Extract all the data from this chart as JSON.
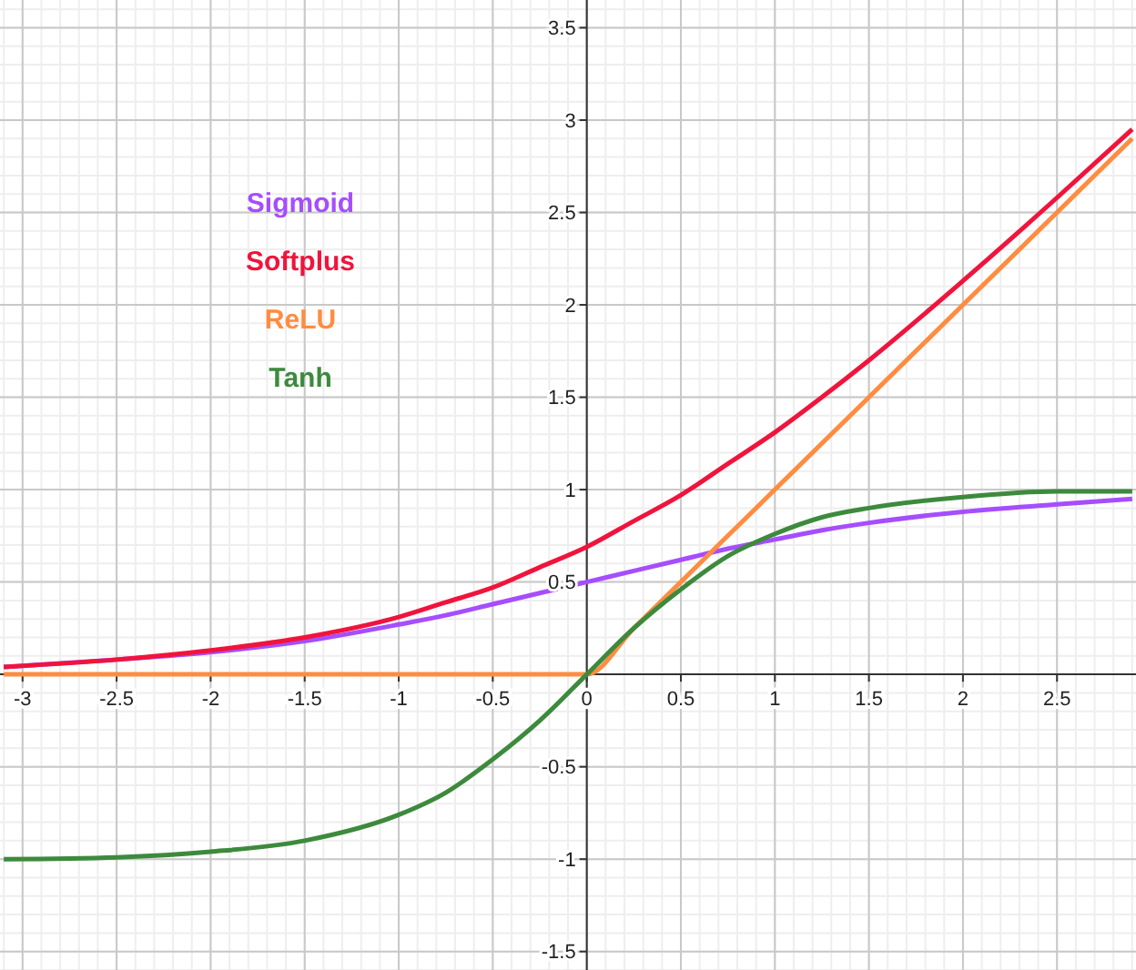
{
  "chart_data": {
    "type": "line",
    "x": [
      -3.1,
      -2.5,
      -2,
      -1.5,
      -1,
      -0.75,
      -0.5,
      -0.25,
      0,
      0.25,
      0.5,
      0.75,
      1,
      1.25,
      1.5,
      2,
      2.5,
      2.9
    ],
    "series": [
      {
        "name": "Sigmoid",
        "color": "#a64dff",
        "values": [
          0.04,
          0.08,
          0.12,
          0.18,
          0.27,
          0.32,
          0.38,
          0.44,
          0.5,
          0.56,
          0.62,
          0.68,
          0.73,
          0.78,
          0.82,
          0.88,
          0.92,
          0.95
        ]
      },
      {
        "name": "Softplus",
        "color": "#f0143c",
        "values": [
          0.04,
          0.08,
          0.13,
          0.2,
          0.31,
          0.39,
          0.47,
          0.58,
          0.69,
          0.83,
          0.97,
          1.14,
          1.31,
          1.5,
          1.7,
          2.13,
          2.58,
          2.95
        ]
      },
      {
        "name": "ReLU",
        "color": "#ff8c40",
        "values": [
          0,
          0,
          0,
          0,
          0,
          0,
          0,
          0,
          0,
          0.25,
          0.5,
          0.75,
          1,
          1.25,
          1.5,
          2,
          2.5,
          2.9
        ]
      },
      {
        "name": "Tanh",
        "color": "#3d8a3d",
        "values": [
          -1,
          -0.99,
          -0.96,
          -0.9,
          -0.76,
          -0.64,
          -0.46,
          -0.25,
          0,
          0.25,
          0.46,
          0.64,
          0.76,
          0.85,
          0.9,
          0.96,
          0.99,
          0.99
        ]
      }
    ],
    "xlim": [
      -3.12,
      2.92
    ],
    "xticks": [
      -3,
      -2.5,
      -2,
      -1.5,
      -1,
      -0.5,
      0,
      0.5,
      1,
      1.5,
      2,
      2.5
    ],
    "ylim": [
      -1.6,
      3.65
    ],
    "yticks": [
      -1.5,
      -1,
      -0.5,
      0.5,
      1,
      1.5,
      2,
      2.5,
      3,
      3.5
    ],
    "grid": true,
    "legend": "top left",
    "marker": "none",
    "line_style": "solid"
  }
}
